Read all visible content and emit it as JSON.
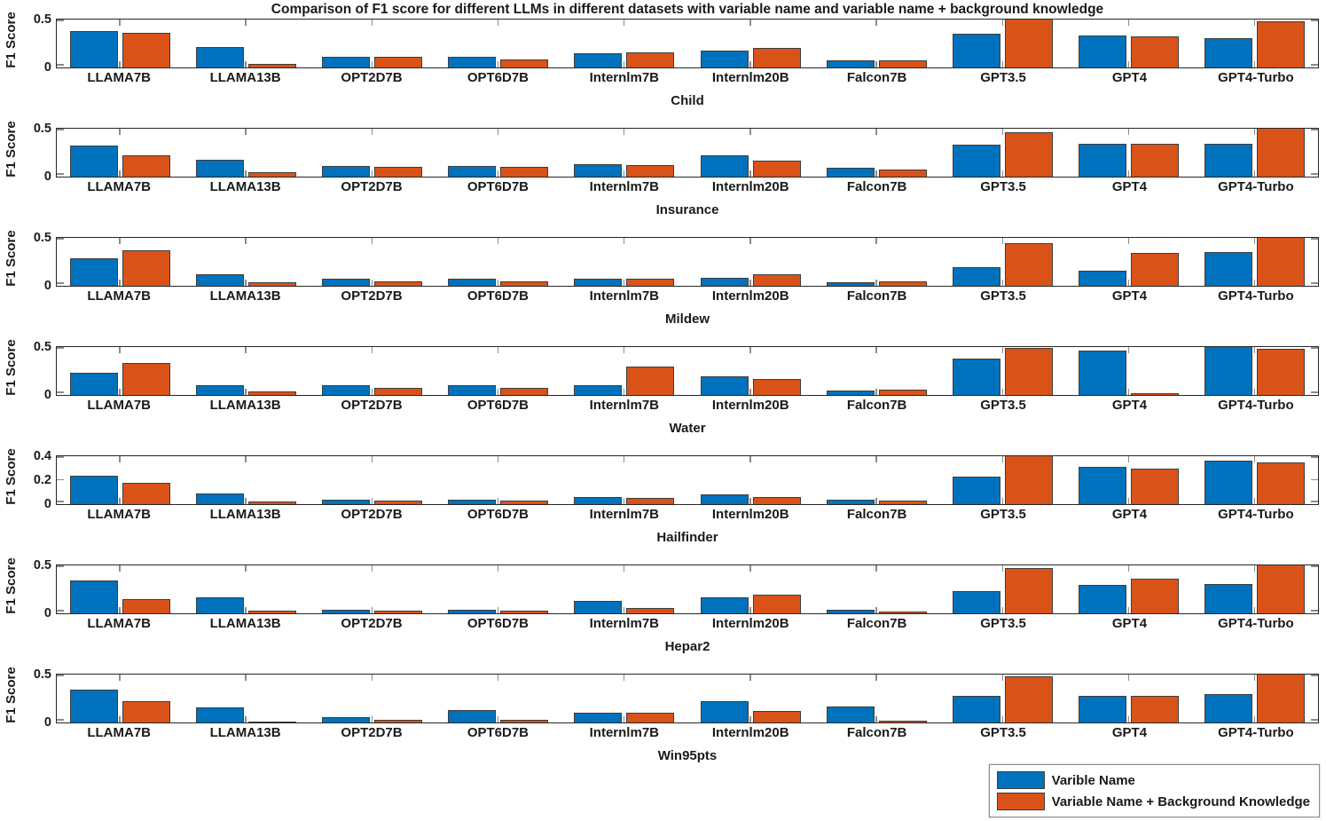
{
  "title": "Comparison of F1 score for different LLMs in different datasets with variable name and variable name + background knowledge",
  "ylabel": "F1 Score",
  "colors": {
    "series1": "#0072BD",
    "series2": "#D95319",
    "bar_edge": "#3d3d3d",
    "axis": "#262626",
    "tick": "#8c8c8c",
    "text": "#1a1a1a"
  },
  "legend": {
    "items": [
      {
        "label": "Varible Name",
        "color": "#0072BD"
      },
      {
        "label": "Variable Name + Background Knowledge",
        "color": "#D95319"
      }
    ]
  },
  "chart_data": {
    "type": "bar",
    "categories": [
      "LLAMA7B",
      "LLAMA13B",
      "OPT2D7B",
      "OPT6D7B",
      "Internlm7B",
      "Internlm20B",
      "Falcon7B",
      "GPT3.5",
      "GPT4",
      "GPT4-Turbo"
    ],
    "series_names": [
      "Varible Name",
      "Variable Name + Background Knowledge"
    ],
    "legend_position": "bottom-right",
    "grid": false,
    "subplots": [
      {
        "title": "Child",
        "ylabel": "F1 Score",
        "ylim": [
          0,
          0.5
        ],
        "yticks": [
          0,
          0.5
        ],
        "ytick_labels": [
          "0",
          "0.5"
        ],
        "series": [
          {
            "name": "Varible Name",
            "values": [
              0.38,
              0.21,
              0.11,
              0.11,
              0.15,
              0.18,
              0.07,
              0.35,
              0.33,
              0.31
            ]
          },
          {
            "name": "Variable Name + Background Knowledge",
            "values": [
              0.36,
              0.04,
              0.11,
              0.08,
              0.16,
              0.2,
              0.07,
              0.52,
              0.32,
              0.48
            ]
          }
        ]
      },
      {
        "title": "Insurance",
        "ylabel": "F1 Score",
        "ylim": [
          0,
          0.5
        ],
        "yticks": [
          0,
          0.5
        ],
        "ytick_labels": [
          "0",
          "0.5"
        ],
        "series": [
          {
            "name": "Varible Name",
            "values": [
              0.32,
              0.18,
              0.11,
              0.11,
              0.13,
              0.22,
              0.09,
              0.33,
              0.34,
              0.34
            ]
          },
          {
            "name": "Variable Name + Background Knowledge",
            "values": [
              0.22,
              0.05,
              0.1,
              0.1,
              0.12,
              0.17,
              0.07,
              0.46,
              0.34,
              0.55
            ]
          }
        ]
      },
      {
        "title": "Mildew",
        "ylabel": "F1 Score",
        "ylim": [
          0,
          0.5
        ],
        "yticks": [
          0,
          0.5
        ],
        "ytick_labels": [
          "0",
          "0.5"
        ],
        "series": [
          {
            "name": "Varible Name",
            "values": [
              0.29,
              0.12,
              0.07,
              0.07,
              0.07,
              0.08,
              0.04,
              0.19,
              0.16,
              0.35
            ]
          },
          {
            "name": "Variable Name + Background Knowledge",
            "values": [
              0.37,
              0.04,
              0.05,
              0.05,
              0.07,
              0.12,
              0.05,
              0.44,
              0.34,
              0.55
            ]
          }
        ]
      },
      {
        "title": "Water",
        "ylabel": "F1 Score",
        "ylim": [
          0,
          0.5
        ],
        "yticks": [
          0,
          0.5
        ],
        "ytick_labels": [
          "0",
          "0.5"
        ],
        "series": [
          {
            "name": "Varible Name",
            "values": [
              0.23,
              0.1,
              0.1,
              0.1,
              0.1,
              0.19,
              0.05,
              0.38,
              0.46,
              0.5
            ]
          },
          {
            "name": "Variable Name + Background Knowledge",
            "values": [
              0.33,
              0.04,
              0.07,
              0.07,
              0.3,
              0.17,
              0.06,
              0.49,
              0.015,
              0.48
            ]
          }
        ]
      },
      {
        "title": "Hailfinder",
        "ylabel": "F1 Score",
        "ylim": [
          0,
          0.4
        ],
        "yticks": [
          0,
          0.2,
          0.4
        ],
        "ytick_labels": [
          "0",
          "0.2",
          "0.4"
        ],
        "series": [
          {
            "name": "Varible Name",
            "values": [
              0.24,
              0.09,
              0.04,
              0.04,
              0.06,
              0.08,
              0.04,
              0.23,
              0.31,
              0.36
            ]
          },
          {
            "name": "Variable Name + Background Knowledge",
            "values": [
              0.18,
              0.02,
              0.03,
              0.03,
              0.05,
              0.06,
              0.03,
              0.4,
              0.3,
              0.35
            ]
          }
        ]
      },
      {
        "title": "Hepar2",
        "ylabel": "F1 Score",
        "ylim": [
          0,
          0.5
        ],
        "yticks": [
          0,
          0.5
        ],
        "ytick_labels": [
          "0",
          "0.5"
        ],
        "series": [
          {
            "name": "Varible Name",
            "values": [
              0.34,
              0.17,
              0.04,
              0.04,
              0.13,
              0.17,
              0.04,
              0.23,
              0.3,
              0.31
            ]
          },
          {
            "name": "Variable Name + Background Knowledge",
            "values": [
              0.15,
              0.03,
              0.03,
              0.03,
              0.06,
              0.19,
              0.02,
              0.47,
              0.36,
              0.52
            ]
          }
        ]
      },
      {
        "title": "Win95pts",
        "ylabel": "F1 Score",
        "ylim": [
          0,
          0.5
        ],
        "yticks": [
          0,
          0.5
        ],
        "ytick_labels": [
          "0",
          "0.5"
        ],
        "series": [
          {
            "name": "Varible Name",
            "values": [
              0.34,
              0.16,
              0.06,
              0.13,
              0.1,
              0.22,
              0.17,
              0.28,
              0.28,
              0.3
            ]
          },
          {
            "name": "Variable Name + Background Knowledge",
            "values": [
              0.22,
              0.01,
              0.03,
              0.03,
              0.1,
              0.12,
              0.02,
              0.48,
              0.28,
              0.5
            ]
          }
        ]
      }
    ]
  }
}
